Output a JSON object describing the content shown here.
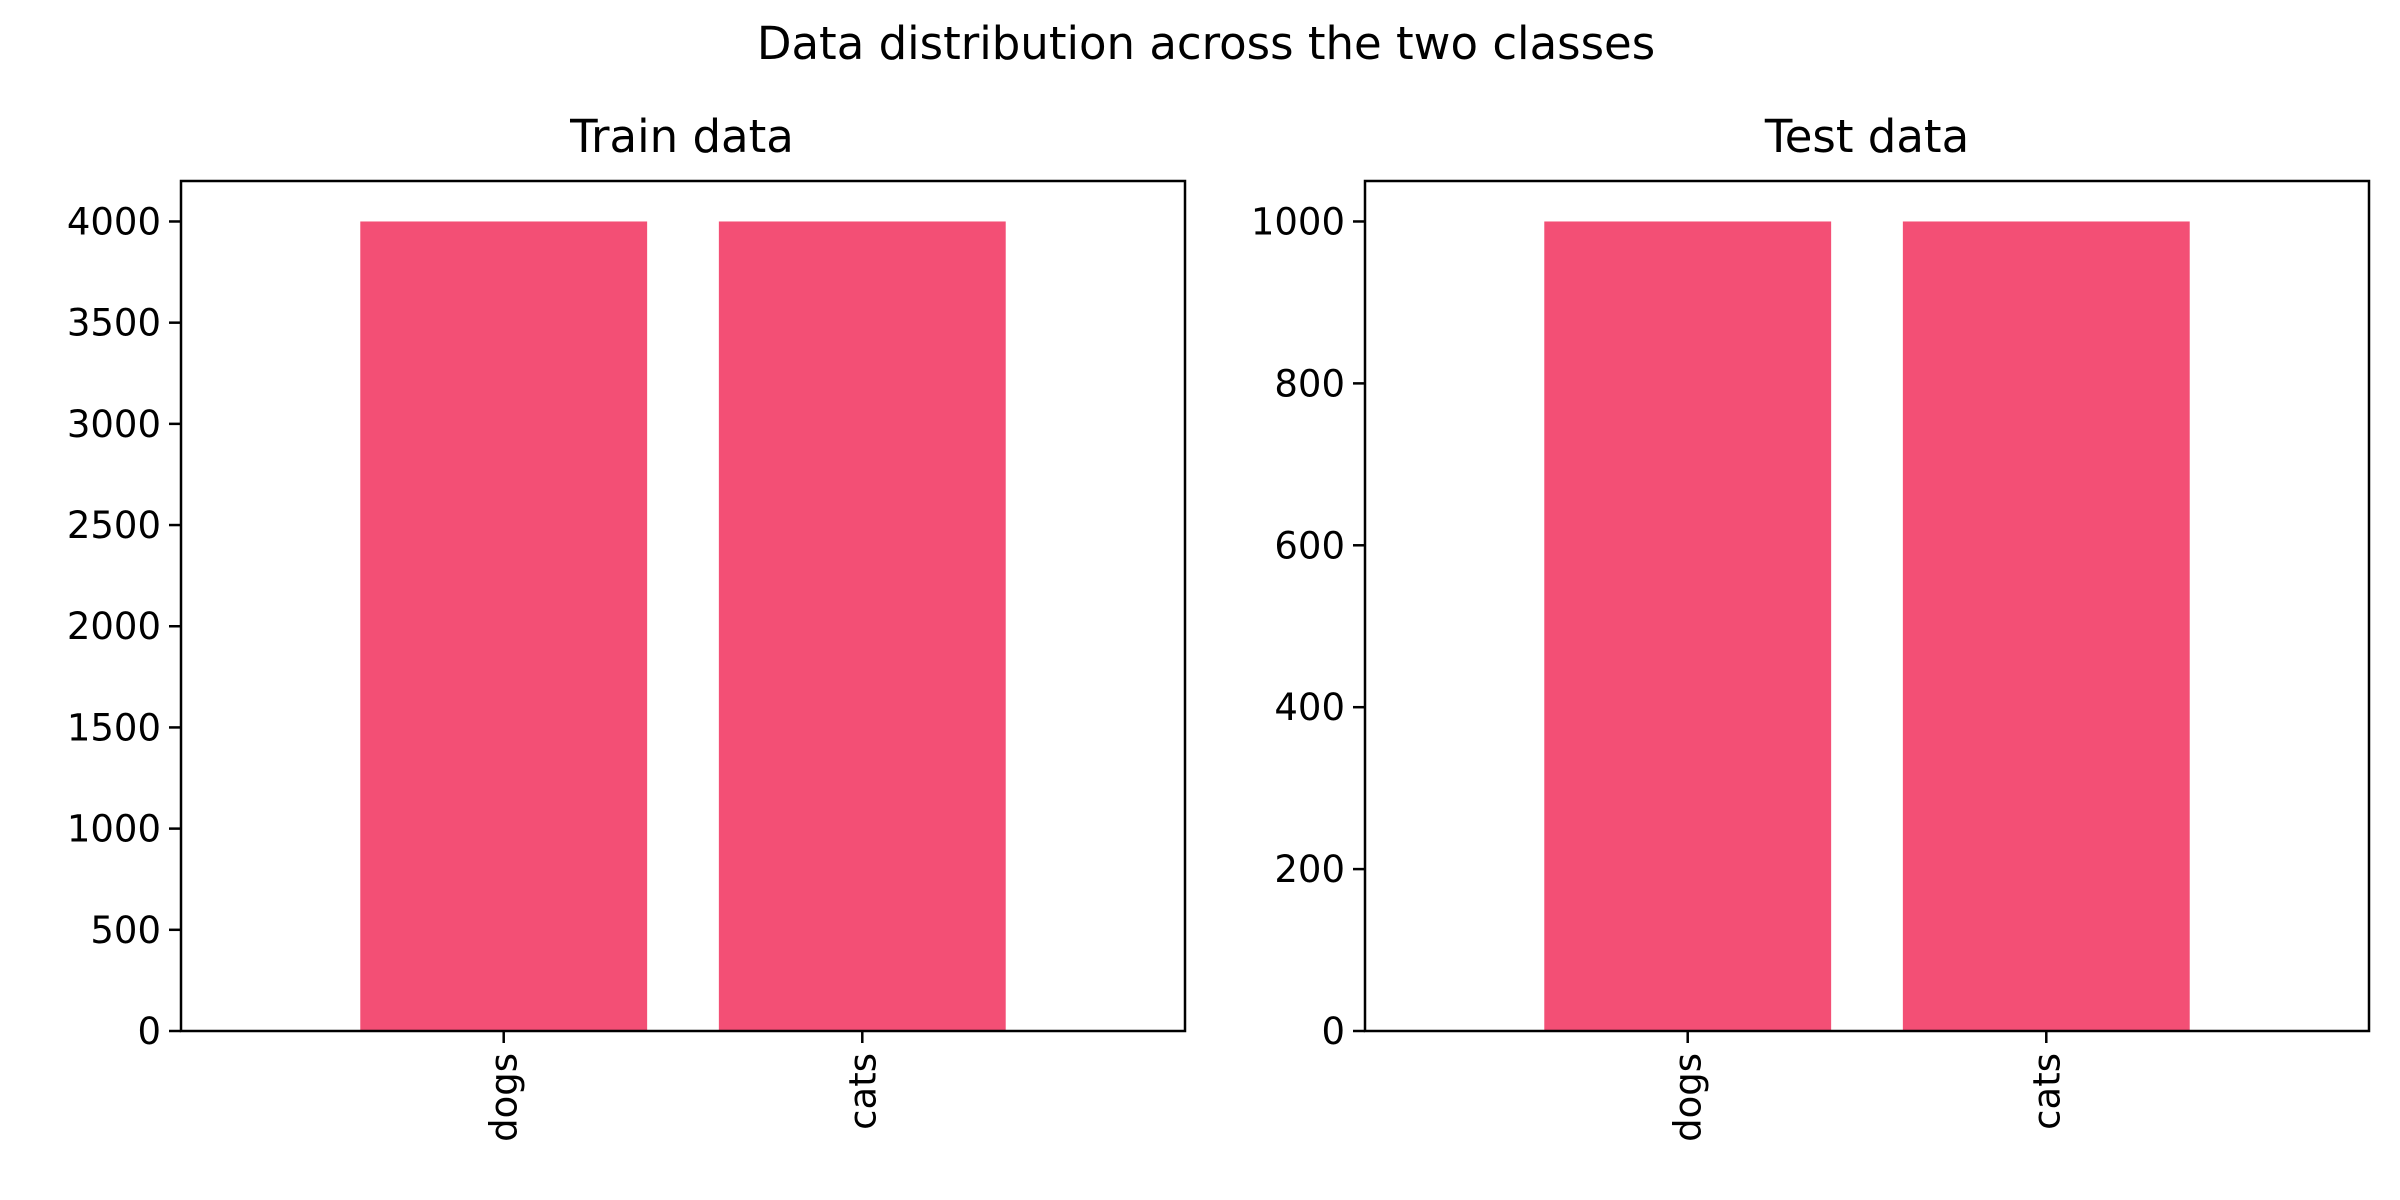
{
  "figure": {
    "suptitle": "Data distribution across the two classes",
    "bar_color": "#f34f75"
  },
  "chart_data": [
    {
      "type": "bar",
      "title": "Train data",
      "xlabel": "",
      "ylabel": "",
      "categories": [
        "dogs",
        "cats"
      ],
      "values": [
        4000,
        4000
      ],
      "ylim": [
        0,
        4200
      ],
      "yticks": [
        0,
        500,
        1000,
        1500,
        2000,
        2500,
        3000,
        3500,
        4000
      ],
      "x_tick_rotation": "vertical",
      "grid": false,
      "legend": "none"
    },
    {
      "type": "bar",
      "title": "Test data",
      "xlabel": "",
      "ylabel": "",
      "categories": [
        "dogs",
        "cats"
      ],
      "values": [
        1000,
        1000
      ],
      "ylim": [
        0,
        1050
      ],
      "yticks": [
        0,
        200,
        400,
        600,
        800,
        1000
      ],
      "x_tick_rotation": "vertical",
      "grid": false,
      "legend": "none"
    }
  ]
}
